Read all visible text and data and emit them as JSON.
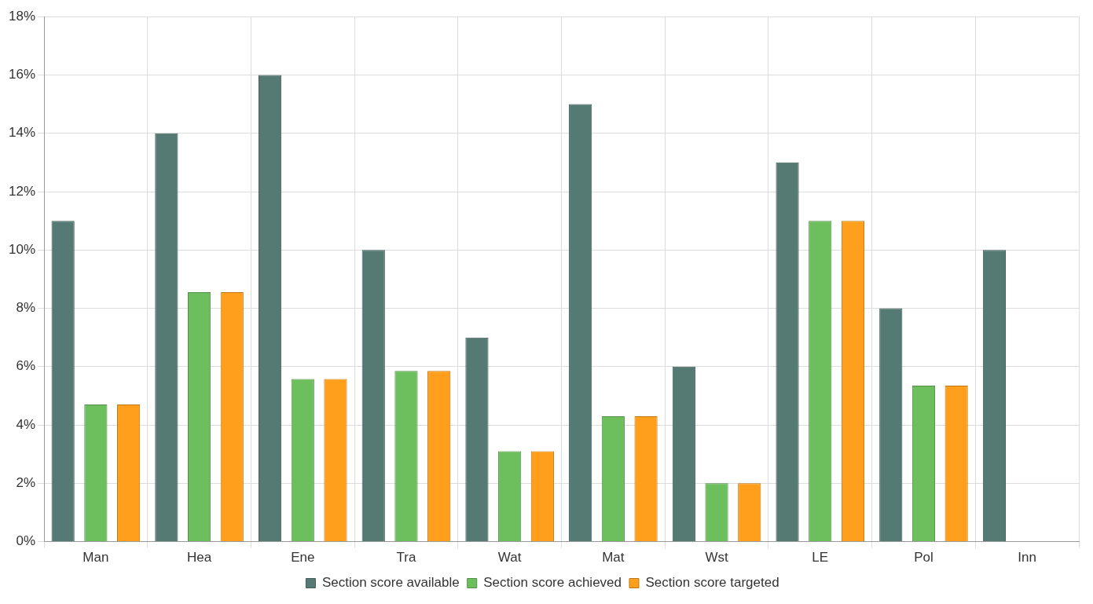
{
  "chart_data": {
    "type": "bar",
    "categories": [
      "Man",
      "Hea",
      "Ene",
      "Tra",
      "Wat",
      "Mat",
      "Wst",
      "LE",
      "Pol",
      "Inn"
    ],
    "series": [
      {
        "name": "Section score available",
        "color": "#557a74",
        "values": [
          11,
          14,
          16,
          10,
          7,
          15,
          6,
          13,
          8,
          10
        ]
      },
      {
        "name": "Section score achieved",
        "color": "#6cbf5c",
        "values": [
          4.7,
          8.55,
          5.58,
          5.85,
          3.1,
          4.3,
          2,
          11,
          5.35,
          0
        ]
      },
      {
        "name": "Section score targeted",
        "color": "#ff9f1c",
        "values": [
          4.7,
          8.55,
          5.58,
          5.85,
          3.1,
          4.3,
          2,
          11,
          5.35,
          0
        ]
      }
    ],
    "ylim": [
      0,
      18
    ],
    "yticks": [
      {
        "value": 0,
        "label": "0%"
      },
      {
        "value": 2,
        "label": "2%"
      },
      {
        "value": 4,
        "label": "4%"
      },
      {
        "value": 6,
        "label": "6%"
      },
      {
        "value": 8,
        "label": "8%"
      },
      {
        "value": 10,
        "label": "10%"
      },
      {
        "value": 12,
        "label": "12%"
      },
      {
        "value": 14,
        "label": "14%"
      },
      {
        "value": 16,
        "label": "16%"
      },
      {
        "value": 18,
        "label": "18%"
      }
    ],
    "grid": true,
    "legend": "bottom"
  }
}
